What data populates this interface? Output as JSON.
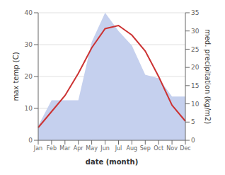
{
  "chart_data": {
    "type": "line",
    "xlabel": "date (month)",
    "ylabel": "max temp (C)",
    "y2label": "med. precipitation (kg/m2)",
    "categories": [
      "Jan",
      "Feb",
      "Mar",
      "Apr",
      "May",
      "Jun",
      "Jul",
      "Aug",
      "Sep",
      "Oct",
      "Nov",
      "Dec"
    ],
    "series": [
      {
        "type": "area",
        "axis": "y2",
        "color": "#c5d0ee",
        "values": [
          4,
          11,
          11,
          11,
          27,
          35,
          30,
          26,
          18,
          17,
          12,
          12
        ]
      },
      {
        "type": "line",
        "color": "#cc3333",
        "values": [
          4,
          9,
          14,
          21,
          29,
          35,
          36,
          33,
          28,
          20,
          11,
          6
        ]
      }
    ],
    "ylim": [
      0,
      40
    ],
    "yticks": [
      0,
      10,
      20,
      30,
      40
    ],
    "y2lim": [
      0,
      35
    ],
    "y2ticks": [
      0,
      5,
      10,
      15,
      20,
      25,
      30,
      35
    ],
    "grid": true
  }
}
